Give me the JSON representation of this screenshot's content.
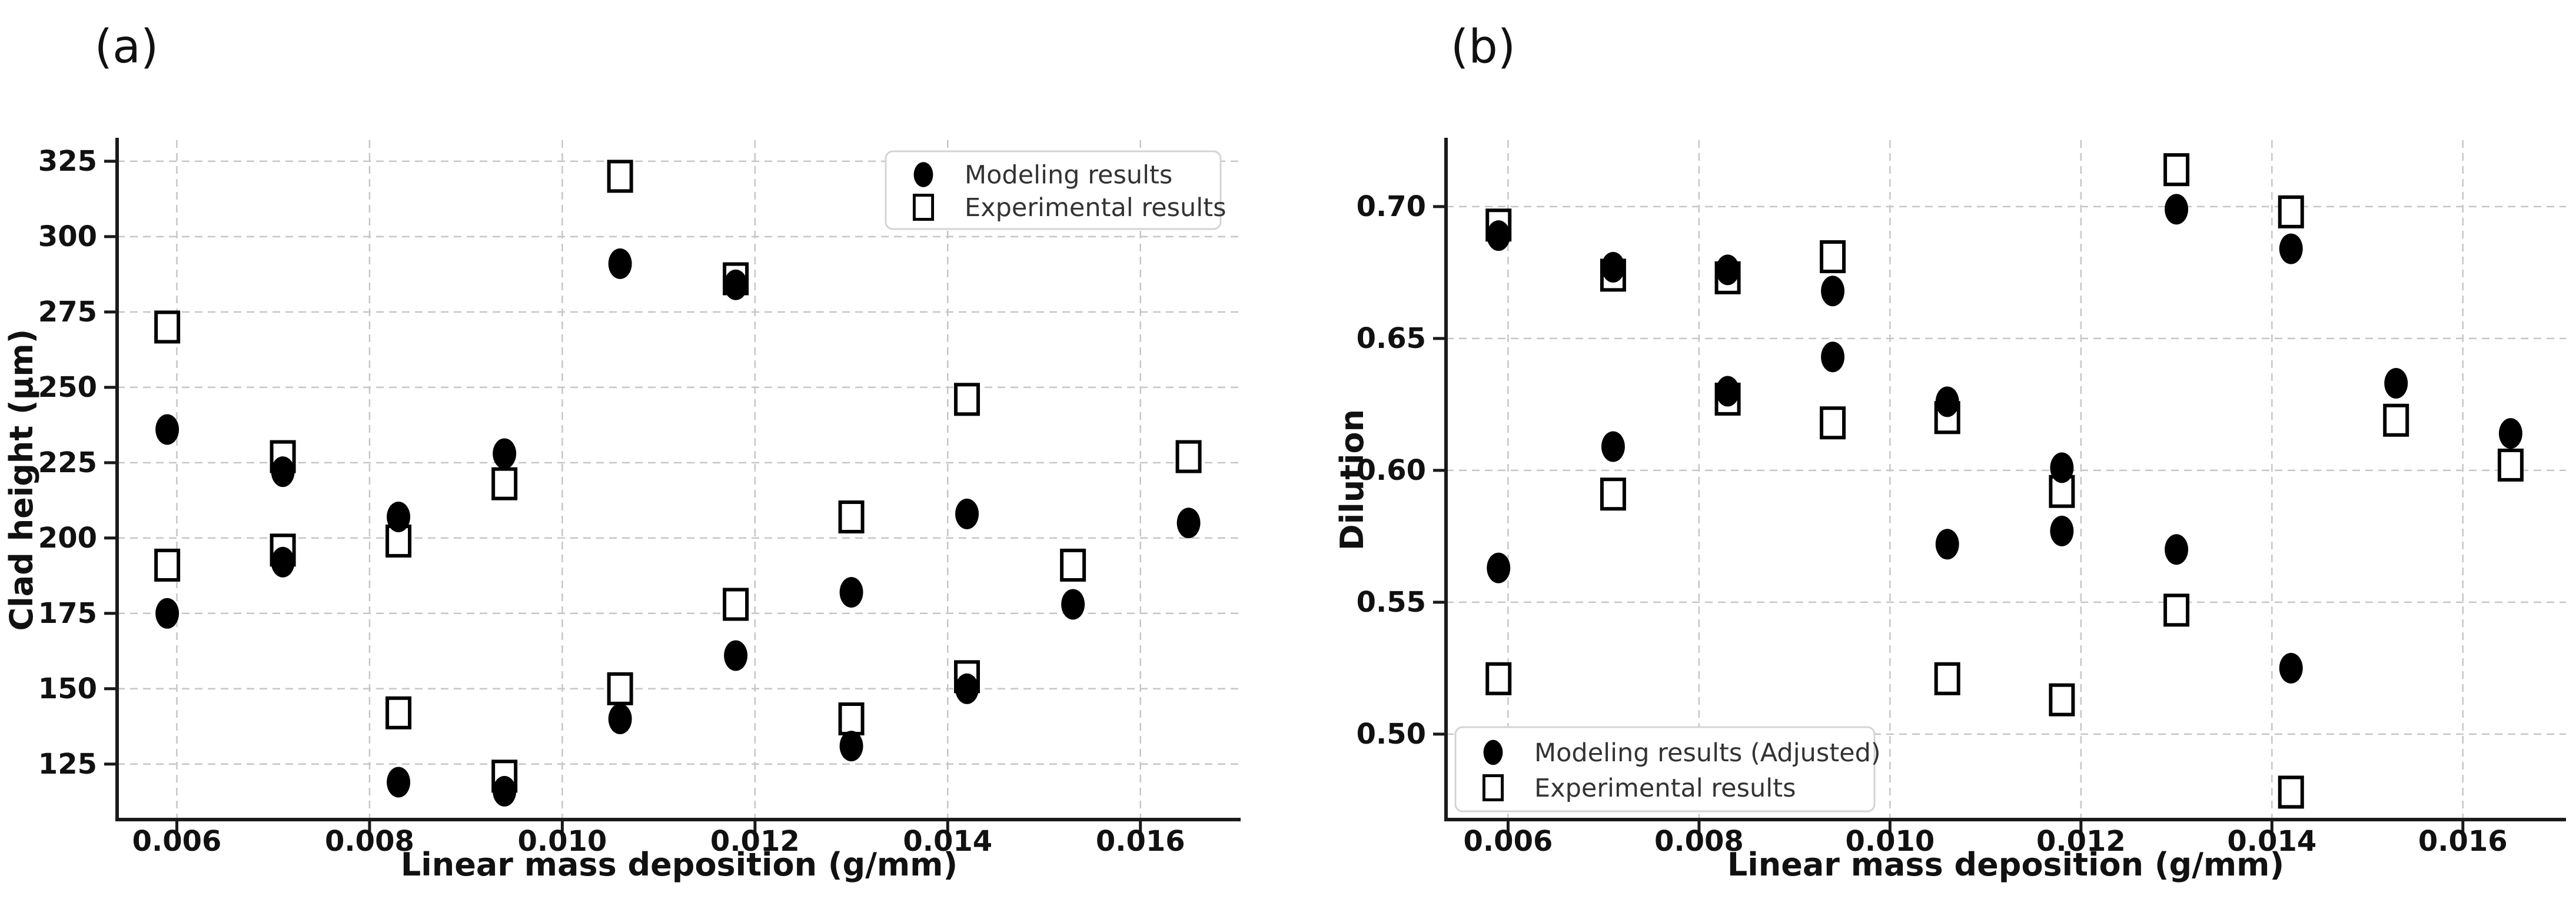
{
  "figure": {
    "background": "#ffffff"
  },
  "colors": {
    "marker": "#000000",
    "grid": "#c6c6c6",
    "spine": "#1a1a1a",
    "legend_border": "#d4d4d4",
    "legend_text": "#333333",
    "tick_text": "#111111"
  },
  "chart_data": [
    {
      "type": "scatter",
      "panel_label": "(a)",
      "xlabel": "Linear mass deposition (g/mm)",
      "ylabel": "Clad height (μm)",
      "xlim": [
        0.00538,
        0.01704
      ],
      "ylim": [
        106.6,
        332.0
      ],
      "xticks": [
        0.006,
        0.008,
        0.01,
        0.012,
        0.014,
        0.016
      ],
      "xtick_labels": [
        "0.006",
        "0.008",
        "0.010",
        "0.012",
        "0.014",
        "0.016"
      ],
      "yticks": [
        125,
        150,
        175,
        200,
        225,
        250,
        275,
        300,
        325
      ],
      "ytick_labels": [
        "125",
        "150",
        "175",
        "200",
        "225",
        "250",
        "275",
        "300",
        "325"
      ],
      "grid": true,
      "legend": {
        "position": "upper-right",
        "entries": [
          {
            "label": "Modeling results",
            "marker": "filled-circle"
          },
          {
            "label": "Experimental results",
            "marker": "open-square"
          }
        ]
      },
      "series": [
        {
          "name": "Modeling results",
          "marker": "filled-circle",
          "points": [
            [
              0.0059,
              236
            ],
            [
              0.0059,
              175
            ],
            [
              0.0071,
              222
            ],
            [
              0.0071,
              192
            ],
            [
              0.0083,
              207
            ],
            [
              0.0083,
              119
            ],
            [
              0.0094,
              228
            ],
            [
              0.0094,
              116
            ],
            [
              0.0106,
              291
            ],
            [
              0.0106,
              140
            ],
            [
              0.0118,
              284
            ],
            [
              0.0118,
              161
            ],
            [
              0.013,
              182
            ],
            [
              0.013,
              131
            ],
            [
              0.0142,
              208
            ],
            [
              0.0142,
              150
            ],
            [
              0.0153,
              178
            ],
            [
              0.0165,
              205
            ]
          ]
        },
        {
          "name": "Experimental results",
          "marker": "open-square",
          "points": [
            [
              0.0059,
              270
            ],
            [
              0.0059,
              191
            ],
            [
              0.0071,
              227
            ],
            [
              0.0071,
              196
            ],
            [
              0.0083,
              199
            ],
            [
              0.0083,
              142
            ],
            [
              0.0094,
              218
            ],
            [
              0.0094,
              121
            ],
            [
              0.0106,
              320
            ],
            [
              0.0106,
              150
            ],
            [
              0.0118,
              286
            ],
            [
              0.0118,
              178
            ],
            [
              0.013,
              207
            ],
            [
              0.013,
              140
            ],
            [
              0.0142,
              246
            ],
            [
              0.0142,
              154
            ],
            [
              0.0153,
              191
            ],
            [
              0.0165,
              227
            ]
          ]
        }
      ]
    },
    {
      "type": "scatter",
      "panel_label": "(b)",
      "xlabel": "Linear mass deposition (g/mm)",
      "ylabel": "Dilution",
      "xlim": [
        0.00535,
        0.01708
      ],
      "ylim": [
        0.4676,
        0.7252
      ],
      "xticks": [
        0.006,
        0.008,
        0.01,
        0.012,
        0.014,
        0.016
      ],
      "xtick_labels": [
        "0.006",
        "0.008",
        "0.010",
        "0.012",
        "0.014",
        "0.016"
      ],
      "yticks": [
        0.5,
        0.55,
        0.6,
        0.65,
        0.7
      ],
      "ytick_labels": [
        "0.50",
        "0.55",
        "0.60",
        "0.65",
        "0.70"
      ],
      "grid": true,
      "legend": {
        "position": "lower-left",
        "entries": [
          {
            "label": "Modeling results (Adjusted)",
            "marker": "filled-circle"
          },
          {
            "label": "Experimental results",
            "marker": "open-square"
          }
        ]
      },
      "series": [
        {
          "name": "Modeling results (Adjusted)",
          "marker": "filled-circle",
          "points": [
            [
              0.0059,
              0.689
            ],
            [
              0.0059,
              0.563
            ],
            [
              0.0071,
              0.677
            ],
            [
              0.0071,
              0.609
            ],
            [
              0.0083,
              0.676
            ],
            [
              0.0083,
              0.63
            ],
            [
              0.0094,
              0.668
            ],
            [
              0.0094,
              0.643
            ],
            [
              0.0106,
              0.626
            ],
            [
              0.0106,
              0.572
            ],
            [
              0.0118,
              0.601
            ],
            [
              0.0118,
              0.577
            ],
            [
              0.013,
              0.699
            ],
            [
              0.013,
              0.57
            ],
            [
              0.0142,
              0.684
            ],
            [
              0.0142,
              0.525
            ],
            [
              0.0153,
              0.633
            ],
            [
              0.0165,
              0.614
            ]
          ]
        },
        {
          "name": "Experimental results",
          "marker": "open-square",
          "points": [
            [
              0.0059,
              0.693
            ],
            [
              0.0059,
              0.521
            ],
            [
              0.0071,
              0.674
            ],
            [
              0.0071,
              0.591
            ],
            [
              0.0083,
              0.673
            ],
            [
              0.0083,
              0.627
            ],
            [
              0.0094,
              0.681
            ],
            [
              0.0094,
              0.618
            ],
            [
              0.0106,
              0.62
            ],
            [
              0.0106,
              0.521
            ],
            [
              0.0118,
              0.592
            ],
            [
              0.0118,
              0.513
            ],
            [
              0.013,
              0.714
            ],
            [
              0.013,
              0.547
            ],
            [
              0.0142,
              0.698
            ],
            [
              0.0142,
              0.478
            ],
            [
              0.0153,
              0.619
            ],
            [
              0.0165,
              0.602
            ]
          ]
        }
      ]
    }
  ]
}
